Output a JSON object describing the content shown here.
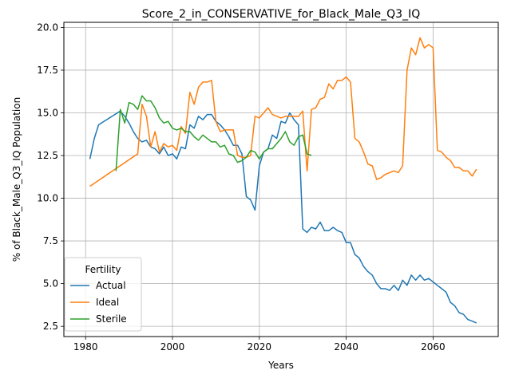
{
  "chart_data": {
    "type": "line",
    "title": "Score_2_in_CONSERVATIVE_for_Black_Male_Q3_IQ",
    "xlabel": "Years",
    "ylabel": "% of Black_Male_Q3_IQ Population",
    "xlim": [
      1975,
      2075
    ],
    "ylim": [
      1.9,
      20.3
    ],
    "xticks": [
      1980,
      2000,
      2020,
      2040,
      2060
    ],
    "yticks": [
      2.5,
      5.0,
      7.5,
      10.0,
      12.5,
      15.0,
      17.5,
      20.0
    ],
    "xtick_labels": [
      "1980",
      "2000",
      "2020",
      "2040",
      "2060"
    ],
    "ytick_labels": [
      "2.5",
      "5.0",
      "7.5",
      "10.0",
      "12.5",
      "15.0",
      "17.5",
      "20.0"
    ],
    "grid": true,
    "legend": {
      "title": "Fertility",
      "placement": "lower-left"
    },
    "series": [
      {
        "name": "Actual",
        "color": "#1f77b4",
        "x": [
          1981,
          1982,
          1983,
          1988,
          1989,
          1990,
          1991,
          1992,
          1993,
          1994,
          1995,
          1996,
          1997,
          1998,
          1999,
          2000,
          2001,
          2002,
          2003,
          2004,
          2005,
          2006,
          2007,
          2008,
          2009,
          2010,
          2011,
          2012,
          2013,
          2014,
          2015,
          2016,
          2017,
          2018,
          2019,
          2020,
          2021,
          2022,
          2023,
          2024,
          2025,
          2026,
          2027,
          2028,
          2029,
          2030,
          2031,
          2032,
          2033,
          2034,
          2035,
          2036,
          2037,
          2038,
          2039,
          2040,
          2041,
          2042,
          2043,
          2044,
          2045,
          2046,
          2047,
          2048,
          2049,
          2050,
          2051,
          2052,
          2053,
          2054,
          2055,
          2056,
          2057,
          2058,
          2059,
          2060,
          2061,
          2062,
          2063,
          2064,
          2065,
          2066,
          2067,
          2068,
          2069,
          2070
        ],
        "y": [
          12.3,
          13.5,
          14.3,
          15.1,
          14.8,
          14.4,
          13.9,
          13.5,
          13.3,
          13.4,
          13.0,
          12.9,
          12.6,
          13.0,
          12.5,
          12.6,
          12.3,
          13.0,
          12.9,
          14.3,
          14.1,
          14.8,
          14.6,
          14.9,
          14.9,
          14.5,
          14.3,
          14.0,
          13.6,
          13.1,
          13.1,
          12.6,
          10.1,
          9.9,
          9.3,
          11.9,
          12.7,
          12.9,
          13.7,
          13.5,
          14.5,
          14.4,
          15.0,
          14.6,
          14.3,
          8.2,
          8.0,
          8.3,
          8.2,
          8.6,
          8.1,
          8.1,
          8.3,
          8.1,
          8.0,
          7.4,
          7.4,
          6.7,
          6.5,
          6.0,
          5.7,
          5.5,
          5.0,
          4.7,
          4.7,
          4.6,
          4.9,
          4.6,
          5.2,
          4.9,
          5.5,
          5.2,
          5.5,
          5.2,
          5.3,
          5.1,
          4.9,
          4.7,
          4.5,
          3.9,
          3.7,
          3.3,
          3.2,
          2.9,
          2.8,
          2.7
        ]
      },
      {
        "name": "Ideal",
        "color": "#ff7f0e",
        "x": [
          1981,
          1992,
          1993,
          1994,
          1995,
          1996,
          1997,
          1998,
          1999,
          2000,
          2001,
          2002,
          2003,
          2004,
          2005,
          2006,
          2007,
          2008,
          2009,
          2010,
          2011,
          2012,
          2013,
          2014,
          2015,
          2016,
          2017,
          2018,
          2019,
          2020,
          2021,
          2022,
          2023,
          2024,
          2025,
          2026,
          2027,
          2028,
          2029,
          2030,
          2031,
          2032,
          2033,
          2034,
          2035,
          2036,
          2037,
          2038,
          2039,
          2040,
          2041,
          2042,
          2043,
          2044,
          2045,
          2046,
          2047,
          2048,
          2049,
          2050,
          2051,
          2052,
          2053,
          2054,
          2055,
          2056,
          2057,
          2058,
          2059,
          2060,
          2061,
          2062,
          2063,
          2064,
          2065,
          2066,
          2067,
          2068,
          2069,
          2070
        ],
        "y": [
          10.7,
          12.6,
          15.5,
          14.8,
          13.0,
          13.9,
          12.7,
          13.2,
          13.0,
          13.1,
          12.8,
          14.2,
          13.8,
          16.2,
          15.5,
          16.5,
          16.8,
          16.8,
          16.9,
          14.5,
          13.9,
          14.0,
          14.0,
          14.0,
          12.5,
          12.4,
          12.4,
          12.5,
          14.8,
          14.7,
          15.0,
          15.3,
          14.9,
          14.8,
          14.7,
          14.8,
          14.8,
          14.8,
          14.8,
          15.1,
          11.6,
          15.2,
          15.3,
          15.8,
          15.9,
          16.7,
          16.4,
          16.9,
          16.9,
          17.1,
          16.8,
          13.5,
          13.3,
          12.7,
          12.0,
          11.9,
          11.1,
          11.2,
          11.4,
          11.5,
          11.6,
          11.5,
          11.9,
          17.5,
          18.8,
          18.4,
          19.4,
          18.8,
          19.0,
          18.8,
          12.8,
          12.7,
          12.4,
          12.2,
          11.8,
          11.8,
          11.6,
          11.6,
          11.3,
          11.7
        ]
      },
      {
        "name": "Sterile",
        "color": "#2ca02c",
        "x": [
          1987,
          1988,
          1989,
          1990,
          1991,
          1992,
          1993,
          1994,
          1995,
          1996,
          1997,
          1998,
          1999,
          2000,
          2001,
          2002,
          2003,
          2004,
          2005,
          2006,
          2007,
          2008,
          2009,
          2010,
          2011,
          2012,
          2013,
          2014,
          2015,
          2016,
          2017,
          2018,
          2019,
          2020,
          2021,
          2022,
          2023,
          2024,
          2025,
          2026,
          2027,
          2028,
          2029,
          2030,
          2031,
          2032
        ],
        "y": [
          11.6,
          15.2,
          14.4,
          15.6,
          15.5,
          15.2,
          16.0,
          15.7,
          15.7,
          15.3,
          14.7,
          14.4,
          14.5,
          14.1,
          14.0,
          14.1,
          13.9,
          13.9,
          13.6,
          13.4,
          13.7,
          13.5,
          13.3,
          13.3,
          13.0,
          13.1,
          12.6,
          12.5,
          12.1,
          12.2,
          12.4,
          12.8,
          12.7,
          12.3,
          12.7,
          12.9,
          12.9,
          13.2,
          13.5,
          13.9,
          13.3,
          13.1,
          13.6,
          13.7,
          12.6,
          12.5
        ]
      }
    ]
  }
}
